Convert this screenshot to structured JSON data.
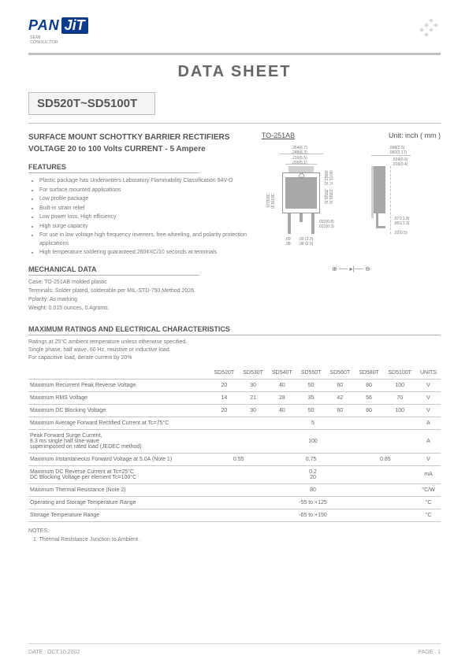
{
  "logo": {
    "left": "PAN",
    "right": "JiT",
    "sub1": "SEMI",
    "sub2": "CONDUCTOR"
  },
  "doc_title": "DATA  SHEET",
  "part_range": "SD520T~SD5100T",
  "header": {
    "line1": "SURFACE MOUNT SCHOTTKY BARRIER RECTIFIERS",
    "line2": "VOLTAGE 20 to 100 Volts    CURRENT - 5 Ampere"
  },
  "package": {
    "name": "TO-251AB",
    "unit_label": "Unit: inch ( mm )"
  },
  "sections": {
    "features": "FEATURES",
    "mech": "MECHANICAL DATA",
    "ratings": "MAXIMUM RATINGS AND ELECTRICAL CHARACTERISTICS"
  },
  "features": [
    "Plastic package has Underwriters Laboratory Flammability Classification 94V-O",
    "For surface mounted applications",
    "Low profile package",
    "Built-in strain relief",
    "Low power loss, High efficiency",
    "High surge capacity",
    "For use in low voltage high frequency inverters, free wheeling, and polarity protection applications",
    "High temperature soldering guaranteed:260¢XC/10 seconds at terminals"
  ],
  "mech": [
    "Case: TO-251AB molded plastic",
    "Terminals: Solder plated, solderable per MIL-STD-750,Method 2026",
    "Polarity:  As marking",
    "Weight: 0.015 ounces, 0.4grams."
  ],
  "dims_front": {
    "top1": ".264(6.7)",
    "top1b": ".248(6.3)",
    "top2": ".216(5.5)",
    "top2b": ".200(5.1)",
    "side_in": ".088(2.2)",
    "side_in_b": ".067(1.7)",
    "body_h": ".255(6.5)",
    "body_h_b": ".235(6.0)",
    "total_h": ".393(10)",
    "total_h_b": ".367(9.3)",
    "pin_sp": ".09",
    "pin_sp_b": ".08",
    "pitch": ".09 (2.3)",
    "pitch_b": ".08 (2.0)",
    "pin_w": ".032(0.8)",
    "pin_w_b": ".012(0.3)",
    "num4": "4"
  },
  "dims_side": {
    "top1": ".098(2.5)",
    "top1b": ".082(2.17)",
    "top2": ".024(0.6)",
    "top2b": ".016(0.4)",
    "pin_t": ".071(1.8)",
    "pin_t_b": ".051(1.3)",
    "foot": ".02(0.5)"
  },
  "cathode_symbol": "⊕ ── ▸|── ⊖",
  "ratings_intro": {
    "l1": "Ratings at 25°C ambient temperature unless otherwise specified.",
    "l2": "Single phase, half wave, 60 Hz, resistive or inductive load.",
    "l3": "For capacitive load, derate current by 20%"
  },
  "table": {
    "cols": [
      "SD520T",
      "SD530T",
      "SD540T",
      "SD550T",
      "SD560T",
      "SD580T",
      "SD5100T"
    ],
    "units_head": "UNITS",
    "rows": [
      {
        "param": "Maximum Recurrent Peak Reverse Voltage",
        "vals": [
          "20",
          "30",
          "40",
          "50",
          "60",
          "80",
          "100"
        ],
        "unit": "V"
      },
      {
        "param": "Maximum RMS Voltage",
        "vals": [
          "14",
          "21",
          "28",
          "35",
          "42",
          "56",
          "70"
        ],
        "unit": "V"
      },
      {
        "param": "Maximum DC Blocking Voltage",
        "vals": [
          "20",
          "30",
          "40",
          "50",
          "60",
          "80",
          "100"
        ],
        "unit": "V"
      },
      {
        "param": "Maximum Average Forward Rectified Current at Tc=75°C",
        "span": "5",
        "unit": "A"
      },
      {
        "param": "Peak Forward Surge Current,\n8.3 ms single half sine-wave\nsuperimposed on rated load (JEDEC method)",
        "span": "100",
        "unit": "A"
      },
      {
        "param": "Maximum Instantaneous Forward Voltage at 5.0A (Note 1)",
        "merge3": [
          "0.55",
          "0.75",
          "0.85"
        ],
        "unit": "V"
      },
      {
        "param": "Maximum DC Reverse Current at Tc=25°C\nDC Blocking Voltage per element  Tc=100°C",
        "span": "0.2\n20",
        "unit": "mA"
      },
      {
        "param": "Maximum Thermal Resistance (Note 2)",
        "span": "80",
        "unit": "°C/W"
      },
      {
        "param": "Operating and Storage Temperature Range",
        "span": "-55 to +125",
        "unit": "°C"
      },
      {
        "param": "Storage Temperature Range",
        "span": "-65 to +150",
        "unit": "°C"
      }
    ]
  },
  "notes": {
    "head": "NOTES:",
    "n1": "1. Thermal Resistance Junction to Ambient ."
  },
  "footer": {
    "date_label": "DATE : ",
    "date": "OCT.10.2002",
    "page_label": "PAGE . ",
    "page": "1"
  },
  "colors": {
    "logo_blue": "#0a3a8a",
    "text_main": "#555555",
    "text_light": "#777777",
    "border": "#c0c0c0",
    "box_bg": "#f4f4f4",
    "lead_gray": "#a8a8a8"
  }
}
